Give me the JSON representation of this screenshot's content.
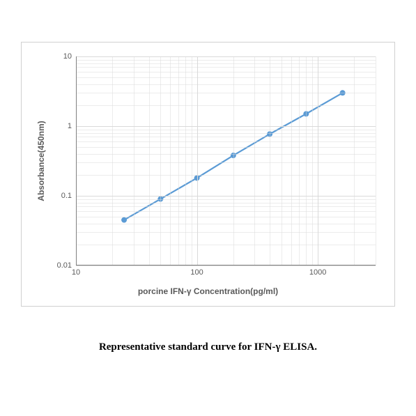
{
  "chart": {
    "type": "line",
    "x_scale": "log",
    "y_scale": "log",
    "xlim": [
      10,
      3000
    ],
    "ylim": [
      0.01,
      10
    ],
    "x_major_ticks": [
      10,
      100,
      1000
    ],
    "x_major_labels": [
      "10",
      "100",
      "1000"
    ],
    "x_minor_ticks": [
      20,
      30,
      40,
      50,
      60,
      70,
      80,
      90,
      200,
      300,
      400,
      500,
      600,
      700,
      800,
      900,
      2000,
      3000
    ],
    "y_major_ticks": [
      0.01,
      0.1,
      1,
      10
    ],
    "y_major_labels": [
      "0.01",
      "0.1",
      "1",
      "10"
    ],
    "y_minor_ticks": [
      0.02,
      0.03,
      0.04,
      0.05,
      0.06,
      0.07,
      0.08,
      0.09,
      0.2,
      0.3,
      0.4,
      0.5,
      0.6,
      0.7,
      0.8,
      0.9,
      2,
      3,
      4,
      5,
      6,
      7,
      8,
      9
    ],
    "series": {
      "x": [
        25,
        50,
        100,
        200,
        400,
        800,
        1600
      ],
      "y": [
        0.045,
        0.09,
        0.18,
        0.38,
        0.77,
        1.5,
        3.0
      ]
    },
    "line_color": "#5b9bd5",
    "marker_color": "#5b9bd5",
    "marker_radius": 4,
    "line_width": 2.2,
    "grid_color": "#d9d9d9",
    "axis_color": "#808080",
    "background_color": "#ffffff",
    "y_axis_title": "Absorbance(450nm)",
    "x_axis_title": "porcine IFN-γ Concentration(pg/ml)",
    "tick_fontsize": 11,
    "axis_title_fontsize": 12
  },
  "caption": "Representative standard curve for IFN-γ  ELISA."
}
